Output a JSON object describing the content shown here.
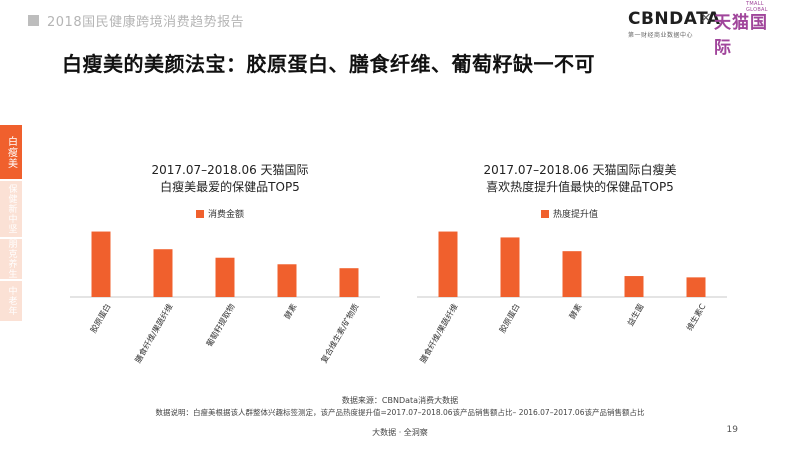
{
  "header": {
    "report_title": "2018国民健康跨境消费趋势报告",
    "logo_cbn": "CBNDATA",
    "logo_cbn_sub": "第一财经商业数据中心",
    "logo_x": "×",
    "logo_tmall": "天猫国际",
    "logo_tmall_sub": "TMALL GLOBAL"
  },
  "main_title": "白瘦美的美颜法宝：胶原蛋白、膳食纤维、葡萄籽缺一不可",
  "sidebar": {
    "active": "白瘦美",
    "items": [
      "保健新中坚",
      "朋克养生",
      "中老年"
    ]
  },
  "colors": {
    "accent": "#f0602d",
    "sidebar_inactive": "#fbe1d5"
  },
  "chart_data": [
    {
      "type": "bar",
      "title_line1": "2017.07–2018.06 天猫国际",
      "title_line2": "白瘦美最爱的保健品TOP5",
      "legend": "消费金额",
      "categories": [
        "胶原蛋白",
        "膳食纤维/果蔬纤维",
        "葡萄籽提取物",
        "酵素",
        "复合维生素/矿物质"
      ],
      "values": [
        100,
        73,
        60,
        50,
        44
      ],
      "ylim": [
        0,
        110
      ],
      "grid": false,
      "legend_position": "top-left"
    },
    {
      "type": "bar",
      "title_line1": "2017.07–2018.06 天猫国际白瘦美",
      "title_line2": "喜欢热度提升值最快的保健品TOP5",
      "legend": "热度提升值",
      "categories": [
        "膳食纤维/果蔬纤维",
        "胶原蛋白",
        "酵素",
        "益生菌",
        "维生素C"
      ],
      "values": [
        100,
        91,
        70,
        32,
        30
      ],
      "ylim": [
        0,
        110
      ],
      "grid": false,
      "legend_position": "top-left"
    }
  ],
  "footer": {
    "source": "数据来源：CBNData消费大数据",
    "note": "数据说明：白瘦美根据该人群整体兴趣标签测定，该产品热度提升值=2017.07–2018.06该产品销售额占比– 2016.07–2017.06该产品销售额占比",
    "tagline": "大数据 · 全洞察",
    "page": "19"
  }
}
